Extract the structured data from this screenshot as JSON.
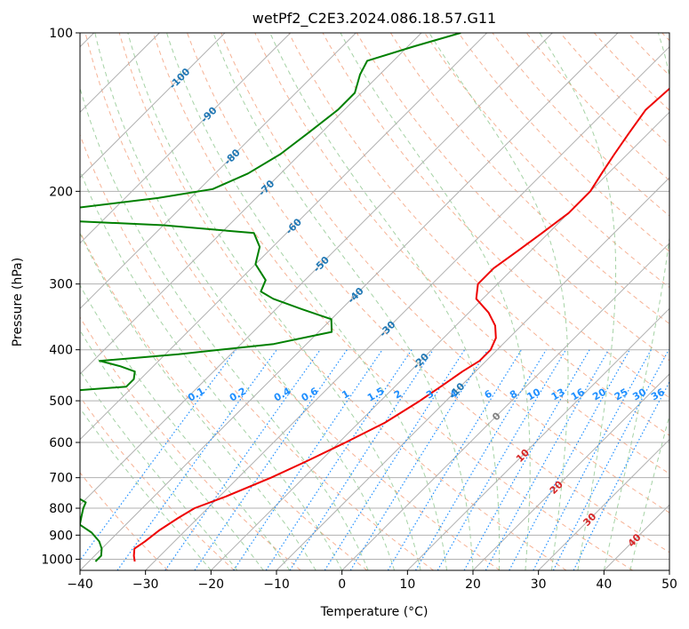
{
  "chart_data": {
    "type": "line",
    "subtype": "skew-T log-P diagram",
    "title": "wetPf2_C2E3.2024.086.18.57.G11",
    "xlabel": "Temperature (°C)",
    "ylabel": "Pressure (hPa)",
    "xlim": [
      -40,
      50
    ],
    "ylim": [
      1050,
      100
    ],
    "y_scale": "log",
    "x_ticks": [
      "-40",
      "-30",
      "-20",
      "-10",
      "0",
      "10",
      "20",
      "30",
      "40",
      "50"
    ],
    "y_ticks": [
      "100",
      "200",
      "300",
      "400",
      "500",
      "600",
      "700",
      "800",
      "900",
      "1000"
    ],
    "grid": true,
    "skewed_isotherm_labels": [
      {
        "text": "-100",
        "T": -100,
        "p": 122
      },
      {
        "text": "-90",
        "T": -90,
        "p": 143
      },
      {
        "text": "-80",
        "T": -80,
        "p": 172
      },
      {
        "text": "-70",
        "T": -70,
        "p": 197
      },
      {
        "text": "-60",
        "T": -60,
        "p": 233
      },
      {
        "text": "-50",
        "T": -50,
        "p": 275
      },
      {
        "text": "-40",
        "T": -40,
        "p": 315
      },
      {
        "text": "-30",
        "T": -30,
        "p": 365
      },
      {
        "text": "-20",
        "T": -20,
        "p": 420
      },
      {
        "text": "-10",
        "T": -10,
        "p": 478
      },
      {
        "text": "0",
        "T": 0,
        "p": 535
      },
      {
        "text": "10",
        "T": 10,
        "p": 635
      },
      {
        "text": "20",
        "T": 20,
        "p": 730
      },
      {
        "text": "30",
        "T": 30,
        "p": 840
      },
      {
        "text": "40",
        "T": 40,
        "p": 920
      }
    ],
    "mixing_ratio_labels": [
      "0.1",
      "0.2",
      "0.4",
      "0.6",
      "1",
      "1.5",
      "2",
      "3",
      "4",
      "6",
      "8",
      "10",
      "13",
      "16",
      "20",
      "25",
      "30",
      "36"
    ],
    "mixing_ratio_values": [
      0.1,
      0.2,
      0.4,
      0.6,
      1,
      1.5,
      2,
      3,
      4,
      6,
      8,
      10,
      13,
      16,
      20,
      25,
      30,
      36
    ],
    "mixing_ratio_label_pressure": 500,
    "series": [
      {
        "key": "temperature",
        "color": "#ee0000",
        "points": [
          {
            "p": 1010,
            "T": -33
          },
          {
            "p": 985,
            "T": -34
          },
          {
            "p": 955,
            "T": -35
          },
          {
            "p": 925,
            "T": -34.5
          },
          {
            "p": 880,
            "T": -34
          },
          {
            "p": 835,
            "T": -33
          },
          {
            "p": 800,
            "T": -32
          },
          {
            "p": 760,
            "T": -29
          },
          {
            "p": 700,
            "T": -25
          },
          {
            "p": 650,
            "T": -22
          },
          {
            "p": 600,
            "T": -19
          },
          {
            "p": 550,
            "T": -16
          },
          {
            "p": 500,
            "T": -14
          },
          {
            "p": 470,
            "T": -13
          },
          {
            "p": 440,
            "T": -12
          },
          {
            "p": 420,
            "T": -11
          },
          {
            "p": 400,
            "T": -11
          },
          {
            "p": 380,
            "T": -12
          },
          {
            "p": 360,
            "T": -14
          },
          {
            "p": 340,
            "T": -17
          },
          {
            "p": 320,
            "T": -21
          },
          {
            "p": 300,
            "T": -23
          },
          {
            "p": 280,
            "T": -23
          },
          {
            "p": 260,
            "T": -22
          },
          {
            "p": 240,
            "T": -21
          },
          {
            "p": 220,
            "T": -20
          },
          {
            "p": 200,
            "T": -20
          },
          {
            "p": 185,
            "T": -21
          },
          {
            "p": 170,
            "T": -22
          },
          {
            "p": 155,
            "T": -23
          },
          {
            "p": 140,
            "T": -24
          },
          {
            "p": 125,
            "T": -23.5
          },
          {
            "p": 115,
            "T": -20
          },
          {
            "p": 108,
            "T": -21
          },
          {
            "p": 100,
            "T": -22
          }
        ]
      },
      {
        "key": "dewpoint",
        "color": "#008000",
        "points": [
          {
            "p": 1010,
            "T": -39
          },
          {
            "p": 985,
            "T": -39
          },
          {
            "p": 955,
            "T": -40
          },
          {
            "p": 925,
            "T": -41.5
          },
          {
            "p": 890,
            "T": -44
          },
          {
            "p": 860,
            "T": -47
          },
          {
            "p": 830,
            "T": -48
          },
          {
            "p": 800,
            "T": -49
          },
          {
            "p": 780,
            "T": -49.5
          },
          {
            "p": 760,
            "T": -52
          },
          {
            "p": 740,
            "T": -58
          },
          {
            "p": 720,
            "T": -70
          },
          {
            "p": 705,
            "T": -80
          },
          {
            "p": 690,
            "T": -87
          },
          {
            "p": 670,
            "T": -89
          },
          {
            "p": 650,
            "T": -87
          },
          {
            "p": 630,
            "T": -86
          },
          {
            "p": 610,
            "T": -86
          },
          {
            "p": 590,
            "T": -86
          },
          {
            "p": 570,
            "T": -85
          },
          {
            "p": 550,
            "T": -86
          },
          {
            "p": 530,
            "T": -86
          },
          {
            "p": 515,
            "T": -85
          },
          {
            "p": 500,
            "T": -81
          },
          {
            "p": 480,
            "T": -70
          },
          {
            "p": 470,
            "T": -61
          },
          {
            "p": 455,
            "T": -61
          },
          {
            "p": 440,
            "T": -62
          },
          {
            "p": 430,
            "T": -65
          },
          {
            "p": 420,
            "T": -69
          },
          {
            "p": 408,
            "T": -58
          },
          {
            "p": 390,
            "T": -45
          },
          {
            "p": 370,
            "T": -38
          },
          {
            "p": 350,
            "T": -40
          },
          {
            "p": 335,
            "T": -46
          },
          {
            "p": 320,
            "T": -52
          },
          {
            "p": 310,
            "T": -55
          },
          {
            "p": 295,
            "T": -56
          },
          {
            "p": 275,
            "T": -60
          },
          {
            "p": 255,
            "T": -62
          },
          {
            "p": 240,
            "T": -65
          },
          {
            "p": 232,
            "T": -80
          },
          {
            "p": 226,
            "T": -101
          },
          {
            "p": 221,
            "T": -104
          },
          {
            "p": 215,
            "T": -96
          },
          {
            "p": 206,
            "T": -85
          },
          {
            "p": 198,
            "T": -78
          },
          {
            "p": 185,
            "T": -75
          },
          {
            "p": 170,
            "T": -73
          },
          {
            "p": 155,
            "T": -72
          },
          {
            "p": 140,
            "T": -71
          },
          {
            "p": 130,
            "T": -71
          },
          {
            "p": 120,
            "T": -73
          },
          {
            "p": 113,
            "T": -74
          },
          {
            "p": 106,
            "T": -69
          },
          {
            "p": 100,
            "T": -64
          }
        ]
      }
    ]
  },
  "colors": {
    "temperature": "#ee0000",
    "dewpoint": "#008000",
    "isotherm": "#b0b0b0",
    "isobar": "#b0b0b0",
    "dry_adiabat": "#f4a582",
    "moist_adiabat": "#7fbf7f",
    "mixing_ratio": "#1f8fff",
    "isotherm_label": "#1f77b4",
    "isotherm_label_warm": "#d62728",
    "zero_isotherm_label": "#808080"
  }
}
